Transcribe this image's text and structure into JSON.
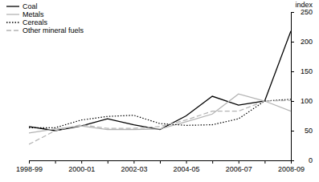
{
  "chart_data": {
    "type": "line",
    "y_label": "index",
    "categories": [
      "1998-99",
      null,
      "2000-01",
      null,
      "2002-03",
      null,
      "2004-05",
      null,
      "2006-07",
      null,
      "2008-09"
    ],
    "ylim": [
      0,
      250
    ],
    "yticks": [
      0,
      50,
      100,
      150,
      200,
      250
    ],
    "grid": false,
    "legend": "upper left",
    "series": [
      {
        "name": "Coal",
        "color": "#000000",
        "line_style": "solid",
        "values": [
          57,
          50,
          58,
          70,
          60,
          52,
          75,
          108,
          93,
          100,
          218
        ]
      },
      {
        "name": "Metals",
        "color": "#b3b3b3",
        "line_style": "solid",
        "values": [
          46,
          53,
          58,
          52,
          52,
          53,
          65,
          78,
          112,
          100,
          83
        ]
      },
      {
        "name": "Cereals",
        "color": "#000000",
        "line_style": "dotted",
        "values": [
          55,
          55,
          68,
          74,
          76,
          62,
          59,
          60,
          70,
          100,
          103
        ]
      },
      {
        "name": "Other mineral fuels",
        "color": "#b3b3b3",
        "line_style": "dashed",
        "values": [
          27,
          50,
          60,
          54,
          54,
          57,
          68,
          83,
          83,
          100,
          101
        ]
      }
    ]
  }
}
